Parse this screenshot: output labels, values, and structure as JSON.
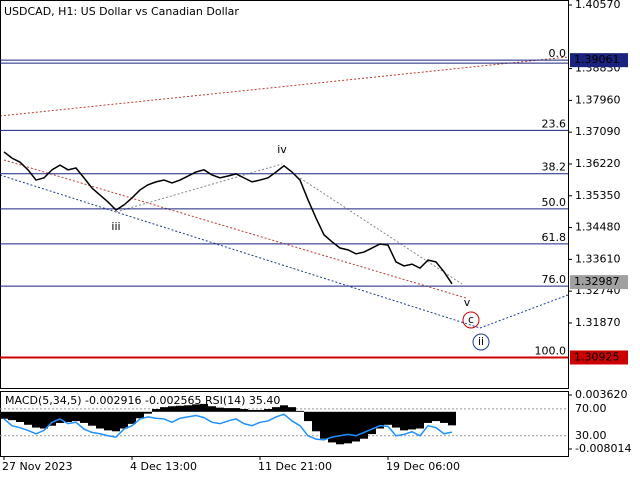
{
  "chart_data": [
    {
      "type": "line",
      "title": "USDCAD, H1:  US Dollar vs Canadian Dollar",
      "color": "#000000",
      "categories": [
        "27 Nov 2023",
        null,
        null,
        null,
        null,
        null,
        null,
        null,
        null,
        null,
        null,
        null,
        null,
        null,
        null,
        null,
        "4 Dec 13:00",
        null,
        null,
        null,
        null,
        null,
        null,
        null,
        null,
        null,
        null,
        null,
        null,
        null,
        null,
        null,
        "11 Dec 21:00",
        null,
        null,
        null,
        null,
        null,
        null,
        null,
        null,
        null,
        null,
        null,
        null,
        null,
        null,
        null,
        "19 Dec 06:00",
        null,
        null,
        null,
        null,
        null,
        null,
        null,
        null
      ],
      "values": [
        1.3655,
        1.3638,
        1.3627,
        1.3606,
        1.3578,
        1.3584,
        1.3606,
        1.3619,
        1.3606,
        1.3611,
        1.3584,
        1.3556,
        1.3537,
        1.3518,
        1.3496,
        1.351,
        1.3529,
        1.3551,
        1.3565,
        1.3573,
        1.3578,
        1.357,
        1.3578,
        1.3589,
        1.36,
        1.3606,
        1.3592,
        1.3584,
        1.3589,
        1.3595,
        1.3584,
        1.3573,
        1.3578,
        1.3584,
        1.36,
        1.3617,
        1.36,
        1.3578,
        1.3524,
        1.3474,
        1.3428,
        1.3409,
        1.3392,
        1.3387,
        1.3376,
        1.3381,
        1.3392,
        1.3403,
        1.34,
        1.3354,
        1.3343,
        1.3348,
        1.3337,
        1.3359,
        1.3354,
        1.3327,
        1.3294
      ],
      "ylim": [
        1.3009,
        1.4057
      ],
      "yticks": [
        {
          "value": 1.4057,
          "label": "1.40570"
        },
        {
          "value": 1.3883,
          "label": "1.38830"
        },
        {
          "value": 1.3796,
          "label": "1.37960"
        },
        {
          "value": 1.3709,
          "label": "1.37090"
        },
        {
          "value": 1.3622,
          "label": "1.36220"
        },
        {
          "value": 1.3535,
          "label": "1.35350"
        },
        {
          "value": 1.3448,
          "label": "1.34480"
        },
        {
          "value": 1.3361,
          "label": "1.33610"
        },
        {
          "value": 1.3274,
          "label": "1.32740"
        },
        {
          "value": 1.3187,
          "label": "1.31870"
        }
      ],
      "fib_high": 1.39061,
      "fib_low": 1.30925,
      "last_price": 1.32987,
      "fib_levels": [
        {
          "value": 0,
          "label": "0.0"
        },
        23.6,
        38.2,
        {
          "value": 50,
          "label": "50.0"
        },
        61.8,
        {
          "value": 76,
          "label": "76.0"
        },
        {
          "value": 100,
          "label": "100.0"
        }
      ],
      "annotations": [
        "iv",
        "iii",
        "v",
        "c",
        "ii"
      ]
    },
    {
      "type": "bar",
      "title": "MACD(5,34,5) -0.002916 -0.002565 RSI(14) 35.40",
      "series": [
        {
          "color": "#000000",
          "values": [
            -0.0015,
            -0.0018,
            -0.0022,
            -0.0028,
            -0.0034,
            -0.0036,
            -0.003,
            -0.0024,
            -0.0022,
            -0.002,
            -0.0024,
            -0.003,
            -0.0036,
            -0.004,
            -0.0042,
            -0.0036,
            -0.0026,
            -0.0014,
            -0.0004,
            0.0006,
            0.001,
            0.0012,
            0.0013,
            0.0014,
            0.0016,
            0.0017,
            0.0012,
            0.0009,
            0.0008,
            0.0008,
            0.0006,
            0.0004,
            0.0004,
            0.0006,
            0.001,
            0.0014,
            0.001,
            0.0002,
            -0.002,
            -0.0042,
            -0.0058,
            -0.0066,
            -0.007,
            -0.0068,
            -0.0064,
            -0.0058,
            -0.0048,
            -0.0036,
            -0.0028,
            -0.0034,
            -0.004,
            -0.0038,
            -0.0036,
            -0.0024,
            -0.002,
            -0.0024,
            -0.002916
          ]
        },
        {
          "color": "#1e90ff",
          "axis": "y2",
          "values": [
            55,
            45,
            42,
            38,
            33,
            38,
            50,
            55,
            48,
            50,
            40,
            35,
            33,
            30,
            28,
            40,
            45,
            55,
            58,
            56,
            55,
            50,
            56,
            58,
            60,
            57,
            50,
            48,
            52,
            55,
            48,
            45,
            50,
            52,
            58,
            62,
            52,
            45,
            30,
            25,
            24,
            28,
            30,
            32,
            30,
            35,
            40,
            45,
            44,
            30,
            32,
            36,
            30,
            45,
            42,
            33,
            35.4
          ]
        }
      ],
      "ylim": [
        -0.008014,
        0.00362
      ],
      "yticks": [
        {
          "value": 0.00362,
          "label": "0.003620"
        },
        -0.008014
      ],
      "y2lim": [
        0,
        92
      ],
      "y2ticks": [
        {
          "value": 70,
          "label": "70.00"
        },
        {
          "value": 30,
          "label": "30.00"
        }
      ]
    }
  ]
}
